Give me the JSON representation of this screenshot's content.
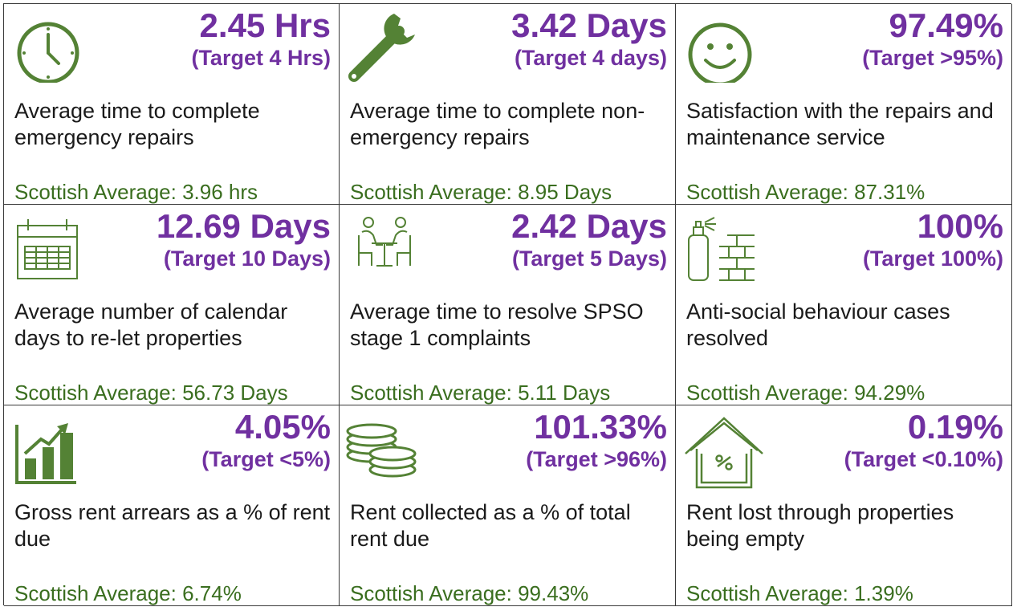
{
  "colors": {
    "value": "#7030a0",
    "average": "#3a6e1f",
    "icon": "#548235",
    "text": "#1a1a1a",
    "border": "#3a3a3a"
  },
  "kpis": [
    {
      "icon": "clock-icon",
      "value": "2.45 Hrs",
      "target": "(Target 4 Hrs)",
      "description": "Average time to complete emergency repairs",
      "average": "Scottish Average: 3.96 hrs"
    },
    {
      "icon": "wrench-icon",
      "value": "3.42 Days",
      "target": "(Target 4 days)",
      "description": "Average time to complete non-emergency repairs",
      "average": "Scottish Average: 8.95 Days"
    },
    {
      "icon": "smiley-icon",
      "value": "97.49%",
      "target": "(Target >95%)",
      "description": "Satisfaction with the repairs and maintenance service",
      "average": "Scottish Average: 87.31%"
    },
    {
      "icon": "calendar-icon",
      "value": "12.69 Days",
      "target": "(Target 10 Days)",
      "description": "Average number of calendar days to re-let properties",
      "average": "Scottish Average: 56.73 Days"
    },
    {
      "icon": "meeting-table-icon",
      "value": "2.42 Days",
      "target": "(Target 5 Days)",
      "description": "Average time to resolve SPSO stage 1 complaints",
      "average": "Scottish Average: 5.11 Days"
    },
    {
      "icon": "spray-can-wall-icon",
      "value": "100%",
      "target": "(Target 100%)",
      "description": "Anti-social behaviour cases resolved",
      "average": "Scottish Average: 94.29%"
    },
    {
      "icon": "bar-chart-up-icon",
      "value": "4.05%",
      "target": "(Target <5%)",
      "description": "Gross rent arrears as a % of rent due",
      "average": "Scottish Average: 6.74%"
    },
    {
      "icon": "coins-icon",
      "value": "101.33%",
      "target": "(Target >96%)",
      "description": "Rent collected as a % of total rent due",
      "average": "Scottish Average: 99.43%"
    },
    {
      "icon": "house-percent-icon",
      "value": "0.19%",
      "target": "(Target <0.10%)",
      "description": "Rent lost through properties being empty",
      "average": "Scottish Average: 1.39%"
    }
  ]
}
